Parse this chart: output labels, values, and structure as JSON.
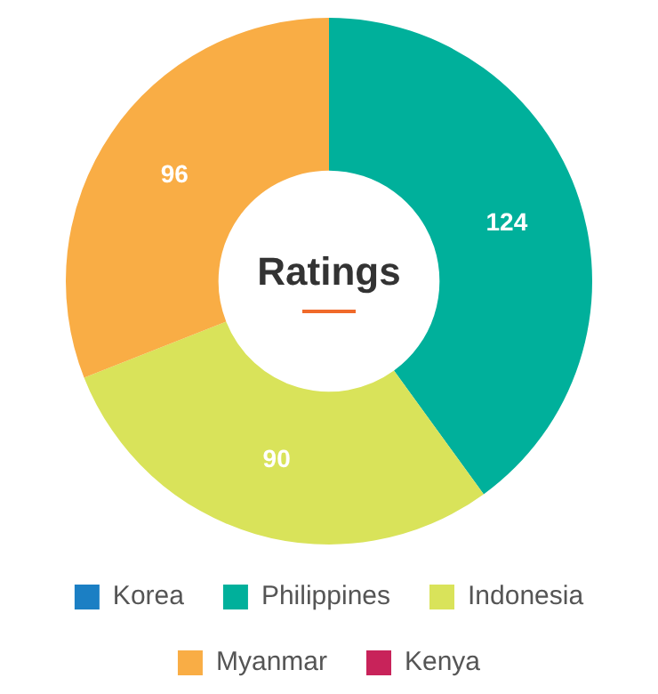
{
  "chart_data": {
    "type": "donut",
    "title": "Ratings",
    "categories": [
      "Korea",
      "Philippines",
      "Indonesia",
      "Myanmar",
      "Kenya"
    ],
    "values": [
      0,
      124,
      90,
      96,
      0
    ],
    "colors": [
      "#1b7fc4",
      "#00b09b",
      "#d9e35a",
      "#f9ad45",
      "#c8235a"
    ],
    "value_labels": [
      null,
      "124",
      "90",
      "96",
      null
    ],
    "legend": "bottom"
  }
}
